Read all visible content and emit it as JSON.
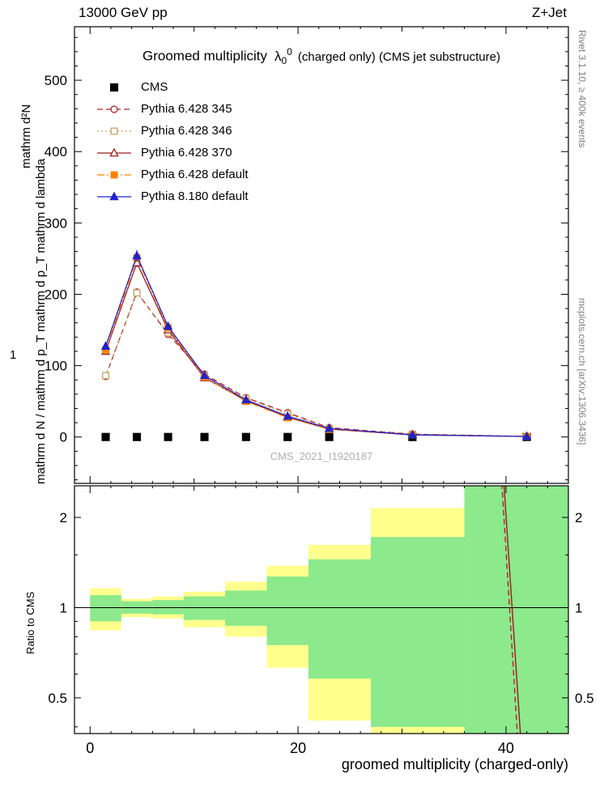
{
  "header": {
    "left": "13000 GeV pp",
    "right": "Z+Jet"
  },
  "side_notes": {
    "rivet": "Rivet 3.1.10, ≥ 400k events",
    "mcplots": "mcplots.cern.ch [arXiv:1306.3436]"
  },
  "main_plot": {
    "title": {
      "pre": "Groomed multiplicity",
      "lambda": "λ",
      "sub": "0",
      "sup": "0",
      "post": "(charged only) (CMS jet substructure)"
    },
    "ylabel": {
      "one": "1",
      "numerator": "mathrm d²N",
      "denominator": "mathrm d N / mathrm d p_T mathrm d p_T mathrm d lambda"
    },
    "watermark": "CMS_2021_I1920187"
  },
  "ratio_plot": {
    "ylabel": "Ratio to CMS"
  },
  "xaxis": {
    "label": "groomed multiplicity (charged-only)"
  },
  "chart_data": [
    {
      "type": "line",
      "title": "Groomed multiplicity λ_0^0 (charged only) (CMS jet substructure)",
      "xlabel": "groomed multiplicity (charged-only)",
      "ylabel": "1/dN/dp_T d^2N/dp_T dlambda",
      "xlim": [
        -1.5,
        46
      ],
      "ylim": [
        -65,
        575
      ],
      "xticks": [
        0,
        20,
        40
      ],
      "yticks": [
        0,
        100,
        200,
        300,
        400,
        500
      ],
      "x": [
        1.5,
        4.5,
        7.5,
        11,
        15,
        19,
        23,
        31,
        42
      ],
      "series": [
        {
          "name": "CMS",
          "color": "#000000",
          "marker": "square",
          "filled": true,
          "line": "none",
          "values": [
            0,
            0,
            0,
            0,
            0,
            0,
            0,
            0,
            0
          ]
        },
        {
          "name": "Pythia 6.428 345",
          "color": "#b22222",
          "marker": "circle",
          "filled": false,
          "line": "dashed",
          "values": [
            85,
            203,
            144,
            88,
            55,
            34,
            13,
            4,
            0.8
          ],
          "errors": [
            3,
            5,
            4,
            3,
            2,
            2,
            1,
            0.7,
            0.3
          ]
        },
        {
          "name": "Pythia 6.428 346",
          "color": "#c8a464",
          "marker": "square",
          "filled": false,
          "line": "dotted",
          "values": [
            86,
            202,
            146,
            86,
            54,
            32,
            12,
            4,
            0.8
          ],
          "errors": [
            3,
            5,
            4,
            3,
            2,
            2,
            1,
            0.7,
            0.3
          ]
        },
        {
          "name": "Pythia 6.428 370",
          "color": "#9e1a1a",
          "marker": "triangle",
          "filled": false,
          "line": "solid",
          "values": [
            120,
            244,
            150,
            83,
            51,
            28,
            11,
            3,
            0.7
          ],
          "errors": [
            3,
            6,
            4,
            3,
            2,
            2,
            1,
            0.7,
            0.3
          ]
        },
        {
          "name": "Pythia 6.428 default",
          "color": "#ff8000",
          "marker": "square",
          "filled": true,
          "line": "dashdot",
          "values": [
            122,
            251,
            153,
            84,
            50,
            27,
            11,
            3,
            0.7
          ],
          "errors": [
            3,
            6,
            4,
            3,
            2,
            2,
            1,
            0.7,
            0.3
          ]
        },
        {
          "name": "Pythia 8.180 default",
          "color": "#2222cc",
          "marker": "triangle",
          "filled": true,
          "line": "solid",
          "values": [
            127,
            254,
            155,
            86,
            52,
            29,
            12,
            3,
            0.7
          ],
          "errors": [
            4,
            8,
            5,
            3,
            2,
            2,
            1,
            0.7,
            0.3
          ]
        }
      ]
    },
    {
      "type": "ratio-bands",
      "ylabel": "Ratio to CMS",
      "yscale": "log",
      "ylim": [
        0.38,
        2.55
      ],
      "yticks": [
        0.5,
        1,
        2
      ],
      "yticks_minor": [
        0.4,
        0.6,
        0.7,
        0.8,
        0.9,
        1.5
      ],
      "reference_line": 1,
      "band_colors": {
        "yellow": "#ffff8d",
        "green": "#8ce98c"
      },
      "bin_edges": [
        0,
        3,
        6,
        9,
        13,
        17,
        21,
        27,
        36,
        48
      ],
      "yellow_band": [
        [
          0.84,
          1.16
        ],
        [
          0.93,
          1.07
        ],
        [
          0.92,
          1.09
        ],
        [
          0.86,
          1.13
        ],
        [
          0.8,
          1.22
        ],
        [
          0.63,
          1.38
        ],
        [
          0.42,
          1.62
        ],
        [
          0.32,
          2.15
        ],
        [
          0.32,
          2.55
        ]
      ],
      "green_band": [
        [
          0.9,
          1.1
        ],
        [
          0.955,
          1.05
        ],
        [
          0.95,
          1.06
        ],
        [
          0.91,
          1.09
        ],
        [
          0.87,
          1.14
        ],
        [
          0.75,
          1.27
        ],
        [
          0.58,
          1.45
        ],
        [
          0.4,
          1.72
        ],
        [
          0.32,
          2.55
        ]
      ],
      "lines": [
        {
          "name": "Pythia 6.428 345 ratio",
          "color": "#b22222",
          "style": "dashed",
          "points": [
            [
              39.6,
              2.6
            ],
            [
              41.2,
              0.33
            ]
          ]
        },
        {
          "name": "Pythia 6.428 370 ratio",
          "color": "#9e1a1a",
          "style": "solid",
          "points": [
            [
              39.8,
              2.6
            ],
            [
              41.5,
              0.33
            ]
          ]
        }
      ]
    }
  ]
}
